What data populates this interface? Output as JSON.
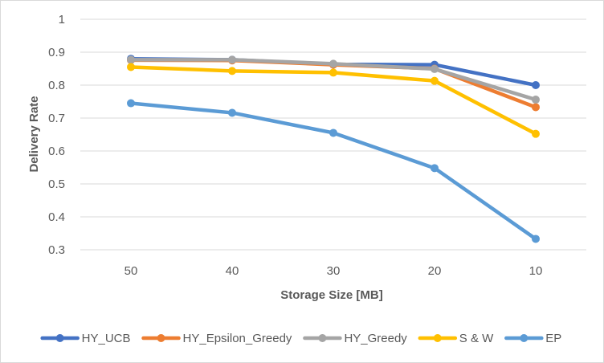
{
  "chart_data": {
    "type": "line",
    "title": "",
    "xlabel": "Storage Size [MB]",
    "ylabel": "Delivery Rate",
    "categories": [
      "50",
      "40",
      "30",
      "20",
      "10"
    ],
    "ylim": [
      0.3,
      1
    ],
    "yticks": [
      "0.3",
      "0.4",
      "0.5",
      "0.6",
      "0.7",
      "0.8",
      "0.9",
      "1"
    ],
    "grid": true,
    "legend_position": "bottom",
    "series": [
      {
        "name": "HY_UCB",
        "color": "#4472C4",
        "values": [
          0.88,
          0.877,
          0.863,
          0.862,
          0.8
        ]
      },
      {
        "name": "HY_Epsilon_Greedy",
        "color": "#ED7D31",
        "values": [
          0.876,
          0.875,
          0.862,
          0.85,
          0.733
        ]
      },
      {
        "name": "HY_Greedy",
        "color": "#A5A5A5",
        "values": [
          0.877,
          0.877,
          0.865,
          0.849,
          0.756
        ]
      },
      {
        "name": "S & W",
        "color": "#FFC000",
        "values": [
          0.855,
          0.843,
          0.838,
          0.813,
          0.652
        ]
      },
      {
        "name": "EP",
        "color": "#5B9BD5",
        "values": [
          0.745,
          0.716,
          0.655,
          0.548,
          0.333
        ]
      }
    ]
  }
}
